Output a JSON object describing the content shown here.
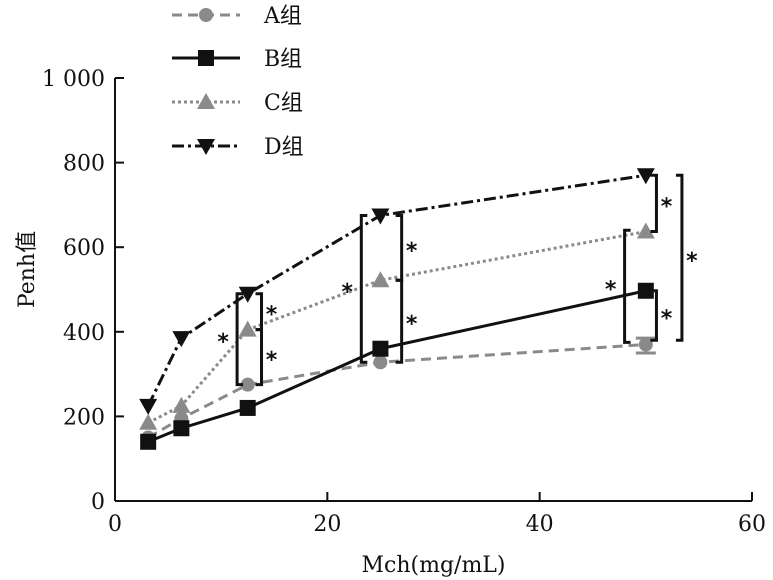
{
  "chart_data": {
    "type": "line",
    "xlabel": "Mch(mg/mL)",
    "ylabel": "Penh值",
    "xlim": [
      0,
      60
    ],
    "ylim": [
      0,
      1000
    ],
    "xticks": [
      0,
      20,
      40,
      60
    ],
    "yticks": [
      0,
      200,
      400,
      600,
      800,
      1000
    ],
    "xtick_labels": [
      "0",
      "20",
      "40",
      "60"
    ],
    "ytick_labels": [
      "0",
      "200",
      "400",
      "600",
      "800",
      "1 000"
    ],
    "legend_position": "top-left",
    "grid": false,
    "series": [
      {
        "name": "A组",
        "color": "#8a8a8a",
        "line_style": "dashed",
        "marker": "circle",
        "x": [
          3.125,
          6.25,
          12.5,
          25,
          50
        ],
        "y": [
          150,
          195,
          275,
          328,
          370
        ]
      },
      {
        "name": "B组",
        "color": "#111111",
        "line_style": "solid",
        "marker": "square",
        "x": [
          3.125,
          6.25,
          12.5,
          25,
          50
        ],
        "y": [
          140,
          172,
          220,
          360,
          497
        ]
      },
      {
        "name": "C组",
        "color": "#8a8a8a",
        "line_style": "dotted",
        "marker": "triangle-up",
        "x": [
          3.125,
          6.25,
          12.5,
          25,
          50
        ],
        "y": [
          185,
          225,
          405,
          522,
          637
        ]
      },
      {
        "name": "D组",
        "color": "#111111",
        "line_style": "dash-dot",
        "marker": "triangle-down",
        "x": [
          3.125,
          6.25,
          12.5,
          25,
          50
        ],
        "y": [
          225,
          385,
          490,
          675,
          770
        ]
      }
    ],
    "annotations": [
      {
        "text": "*",
        "type": "bracket",
        "x_left": 11.5,
        "x_right": 13.6,
        "y_low": 275,
        "y_high": 490
      },
      {
        "text": "*",
        "type": "bracket",
        "x_right": 13.8,
        "y_low": 405,
        "y_high": 490
      },
      {
        "text": "*",
        "type": "bracket",
        "x_right": 13.8,
        "y_low": 275,
        "y_high": 405
      },
      {
        "text": "*",
        "type": "bracket",
        "x_left": 23.2,
        "x_right": 26.8,
        "y_low": 328,
        "y_high": 675
      },
      {
        "text": "*",
        "type": "bracket",
        "x_right": 27.0,
        "y_low": 522,
        "y_high": 675
      },
      {
        "text": "*",
        "type": "bracket",
        "x_right": 27.0,
        "y_low": 328,
        "y_high": 522
      },
      {
        "text": "*",
        "type": "bracket",
        "x_left": 48.0,
        "x_right": 49.0,
        "y_low": 375,
        "y_high": 640
      },
      {
        "text": "*",
        "type": "bracket",
        "x_right": 51.0,
        "y_low": 637,
        "y_high": 770
      },
      {
        "text": "*",
        "type": "bracket",
        "x_right": 51.0,
        "y_low": 380,
        "y_high": 497
      },
      {
        "text": "*",
        "type": "bracket",
        "x_right": 53.4,
        "y_low": 380,
        "y_high": 770
      }
    ],
    "error_bars": [
      {
        "series": "A组",
        "x": 50,
        "low": 350,
        "high": 385
      }
    ]
  }
}
